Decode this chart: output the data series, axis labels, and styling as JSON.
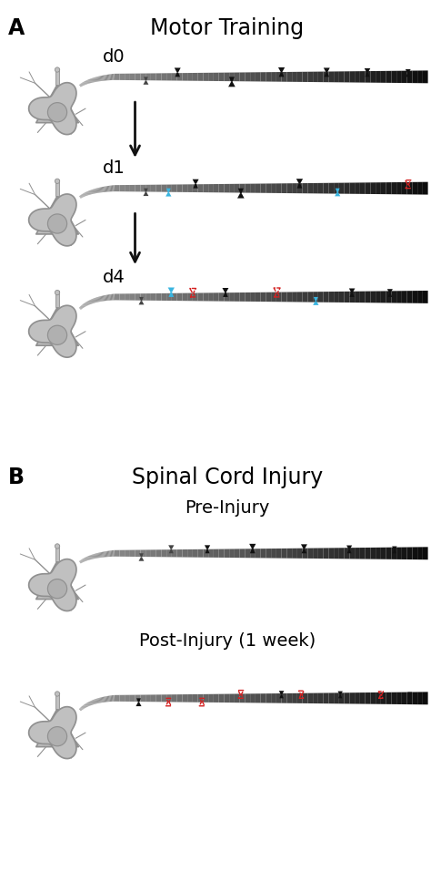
{
  "title_A": "Motor Training",
  "title_B": "Spinal Cord Injury",
  "label_A": "A",
  "label_B": "B",
  "label_d0": "d0",
  "label_d1": "d1",
  "label_d4": "d4",
  "label_pre": "Pre-Injury",
  "label_post": "Post-Injury (1 week)",
  "spine_black": "#111111",
  "spine_blue": "#3ab5e0",
  "spine_red": "#d42020",
  "spine_darkgray": "#444444",
  "background": "#ffffff",
  "arrow_color": "#111111",
  "neuron_fill": "#c0c0c0",
  "neuron_stroke": "#909090",
  "dendrite_gray": "#888888",
  "dendrite_black": "#0a0a0a"
}
